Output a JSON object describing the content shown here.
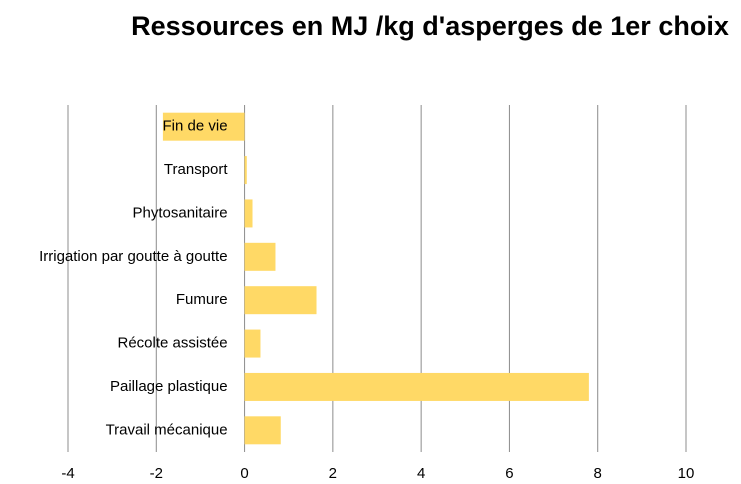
{
  "chart_data": {
    "type": "barh",
    "title": "Ressources en MJ /kg d'asperges de 1er choix",
    "categories": [
      "Fin de vie",
      "Transport",
      "Phytosanitaire",
      "Irrigation par goutte à goutte",
      "Fumure",
      "Récolte assistée",
      "Paillage plastique",
      "Travail mécanique"
    ],
    "values": [
      -1.85,
      0.05,
      0.18,
      0.7,
      1.63,
      0.36,
      7.8,
      0.82
    ],
    "color": "#ffd966",
    "xlim": [
      -4,
      10
    ],
    "xticks": [
      -4,
      -2,
      0,
      2,
      4,
      6,
      8,
      10
    ],
    "grid": true
  }
}
